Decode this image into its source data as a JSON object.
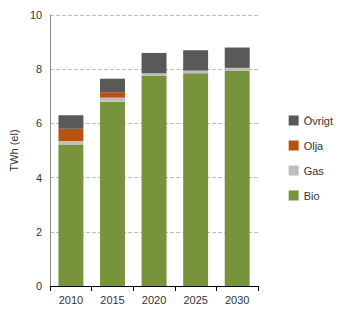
{
  "chart_data": {
    "type": "bar",
    "stacked": true,
    "y_label": "TWh (el)",
    "categories": [
      "2010",
      "2015",
      "2020",
      "2025",
      "2030"
    ],
    "series": [
      {
        "name": "Bio",
        "color": "#77933c",
        "values": [
          5.2,
          6.8,
          7.75,
          7.85,
          7.95
        ]
      },
      {
        "name": "Gas",
        "color": "#bfbfbf",
        "values": [
          0.15,
          0.15,
          0.1,
          0.1,
          0.1
        ]
      },
      {
        "name": "Olja",
        "color": "#b5530f",
        "values": [
          0.45,
          0.2,
          0,
          0,
          0
        ]
      },
      {
        "name": "Övrigt",
        "color": "#595959",
        "values": [
          0.5,
          0.5,
          0.75,
          0.75,
          0.75
        ]
      }
    ],
    "ylim": [
      0,
      10
    ],
    "yticks": [
      0,
      2,
      4,
      6,
      8,
      10
    ],
    "grid": true,
    "legend": "right"
  }
}
